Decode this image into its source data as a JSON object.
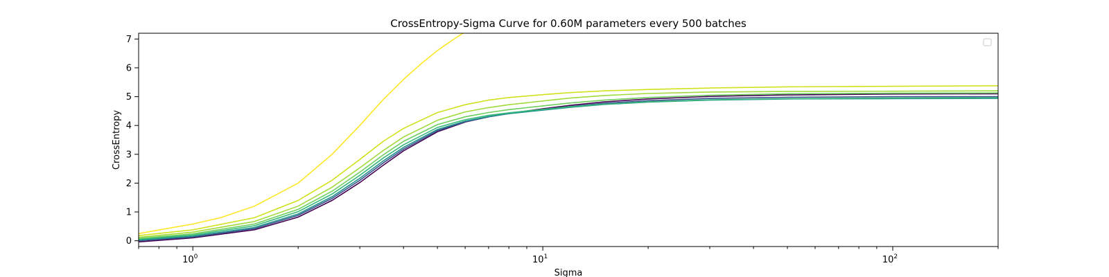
{
  "chart_data": {
    "type": "line",
    "title": "CrossEntropy-Sigma Curve for 0.60M parameters every 500 batches",
    "xlabel": "Sigma",
    "ylabel": "CrossEntropy",
    "xscale": "log",
    "xlim": [
      0.7,
      200
    ],
    "ylim": [
      -0.2,
      7.2
    ],
    "grid": false,
    "legend": {
      "placement": "top-right",
      "entries": []
    },
    "xticks": [
      {
        "value": 1,
        "base": "10",
        "exp": "0"
      },
      {
        "value": 10,
        "base": "10",
        "exp": "1"
      },
      {
        "value": 100,
        "base": "10",
        "exp": "2"
      }
    ],
    "yticks": [
      0,
      1,
      2,
      3,
      4,
      5,
      6,
      7
    ],
    "series": [
      {
        "color": "#440154",
        "values": [
          [
            0.7,
            -0.04
          ],
          [
            1,
            0.1
          ],
          [
            1.5,
            0.38
          ],
          [
            2,
            0.82
          ],
          [
            2.5,
            1.4
          ],
          [
            3,
            2.02
          ],
          [
            3.5,
            2.62
          ],
          [
            4,
            3.12
          ],
          [
            5,
            3.78
          ],
          [
            6,
            4.12
          ],
          [
            7,
            4.3
          ],
          [
            8,
            4.42
          ],
          [
            10,
            4.58
          ],
          [
            12,
            4.7
          ],
          [
            15,
            4.82
          ],
          [
            20,
            4.92
          ],
          [
            30,
            5.01
          ],
          [
            50,
            5.06
          ],
          [
            100,
            5.09
          ],
          [
            200,
            5.1
          ]
        ]
      },
      {
        "color": "#3b528b",
        "values": [
          [
            0.7,
            0.0
          ],
          [
            1,
            0.13
          ],
          [
            1.5,
            0.42
          ],
          [
            2,
            0.88
          ],
          [
            2.5,
            1.47
          ],
          [
            3,
            2.1
          ],
          [
            3.5,
            2.7
          ],
          [
            4,
            3.18
          ],
          [
            5,
            3.82
          ],
          [
            6,
            4.13
          ],
          [
            7,
            4.3
          ],
          [
            8,
            4.41
          ],
          [
            10,
            4.55
          ],
          [
            12,
            4.66
          ],
          [
            15,
            4.77
          ],
          [
            20,
            4.86
          ],
          [
            30,
            4.94
          ],
          [
            50,
            4.98
          ],
          [
            100,
            5.0
          ],
          [
            200,
            5.0
          ]
        ]
      },
      {
        "color": "#21918c",
        "values": [
          [
            0.7,
            0.02
          ],
          [
            1,
            0.16
          ],
          [
            1.5,
            0.46
          ],
          [
            2,
            0.93
          ],
          [
            2.5,
            1.53
          ],
          [
            3,
            2.17
          ],
          [
            3.5,
            2.77
          ],
          [
            4,
            3.24
          ],
          [
            5,
            3.86
          ],
          [
            6,
            4.15
          ],
          [
            7,
            4.31
          ],
          [
            8,
            4.41
          ],
          [
            10,
            4.53
          ],
          [
            12,
            4.63
          ],
          [
            15,
            4.73
          ],
          [
            20,
            4.81
          ],
          [
            30,
            4.88
          ],
          [
            50,
            4.92
          ],
          [
            100,
            4.93
          ],
          [
            200,
            4.94
          ]
        ]
      },
      {
        "color": "#35b779",
        "values": [
          [
            0.7,
            0.05
          ],
          [
            1,
            0.2
          ],
          [
            1.5,
            0.52
          ],
          [
            2,
            1.01
          ],
          [
            2.5,
            1.62
          ],
          [
            3,
            2.27
          ],
          [
            3.5,
            2.87
          ],
          [
            4,
            3.33
          ],
          [
            5,
            3.93
          ],
          [
            6,
            4.2
          ],
          [
            7,
            4.35
          ],
          [
            8,
            4.44
          ],
          [
            10,
            4.56
          ],
          [
            12,
            4.65
          ],
          [
            15,
            4.74
          ],
          [
            20,
            4.82
          ],
          [
            30,
            4.89
          ],
          [
            50,
            4.93
          ],
          [
            100,
            4.95
          ],
          [
            200,
            4.96
          ]
        ]
      },
      {
        "color": "#6ccd5a",
        "values": [
          [
            0.7,
            0.08
          ],
          [
            1,
            0.24
          ],
          [
            1.5,
            0.58
          ],
          [
            2,
            1.09
          ],
          [
            2.5,
            1.72
          ],
          [
            3,
            2.38
          ],
          [
            3.5,
            2.98
          ],
          [
            4,
            3.45
          ],
          [
            5,
            4.03
          ],
          [
            6,
            4.3
          ],
          [
            7,
            4.45
          ],
          [
            8,
            4.55
          ],
          [
            10,
            4.68
          ],
          [
            12,
            4.78
          ],
          [
            15,
            4.88
          ],
          [
            20,
            4.97
          ],
          [
            30,
            5.05
          ],
          [
            50,
            5.1
          ],
          [
            100,
            5.12
          ],
          [
            200,
            5.13
          ]
        ]
      },
      {
        "color": "#a0da39",
        "values": [
          [
            0.7,
            0.12
          ],
          [
            1,
            0.3
          ],
          [
            1.5,
            0.67
          ],
          [
            2,
            1.2
          ],
          [
            2.5,
            1.86
          ],
          [
            3,
            2.53
          ],
          [
            3.5,
            3.13
          ],
          [
            4,
            3.6
          ],
          [
            5,
            4.18
          ],
          [
            6,
            4.47
          ],
          [
            7,
            4.62
          ],
          [
            8,
            4.72
          ],
          [
            10,
            4.85
          ],
          [
            12,
            4.95
          ],
          [
            15,
            5.04
          ],
          [
            20,
            5.11
          ],
          [
            30,
            5.16
          ],
          [
            50,
            5.18
          ],
          [
            100,
            5.19
          ],
          [
            200,
            5.2
          ]
        ]
      },
      {
        "color": "#d0e11c",
        "values": [
          [
            0.7,
            0.18
          ],
          [
            1,
            0.38
          ],
          [
            1.5,
            0.8
          ],
          [
            2,
            1.4
          ],
          [
            2.5,
            2.1
          ],
          [
            3,
            2.82
          ],
          [
            3.5,
            3.45
          ],
          [
            4,
            3.9
          ],
          [
            5,
            4.45
          ],
          [
            6,
            4.72
          ],
          [
            7,
            4.88
          ],
          [
            8,
            4.97
          ],
          [
            10,
            5.07
          ],
          [
            12,
            5.14
          ],
          [
            15,
            5.2
          ],
          [
            20,
            5.25
          ],
          [
            30,
            5.3
          ],
          [
            50,
            5.34
          ],
          [
            100,
            5.36
          ],
          [
            200,
            5.38
          ]
        ]
      },
      {
        "color": "#fde725",
        "values": [
          [
            0.7,
            0.25
          ],
          [
            1,
            0.58
          ],
          [
            1.2,
            0.8
          ],
          [
            1.5,
            1.2
          ],
          [
            2,
            2.0
          ],
          [
            2.5,
            3.0
          ],
          [
            3,
            4.0
          ],
          [
            3.5,
            4.9
          ],
          [
            4,
            5.6
          ],
          [
            4.5,
            6.15
          ],
          [
            5,
            6.6
          ],
          [
            5.5,
            6.95
          ],
          [
            6,
            7.25
          ]
        ]
      }
    ]
  }
}
